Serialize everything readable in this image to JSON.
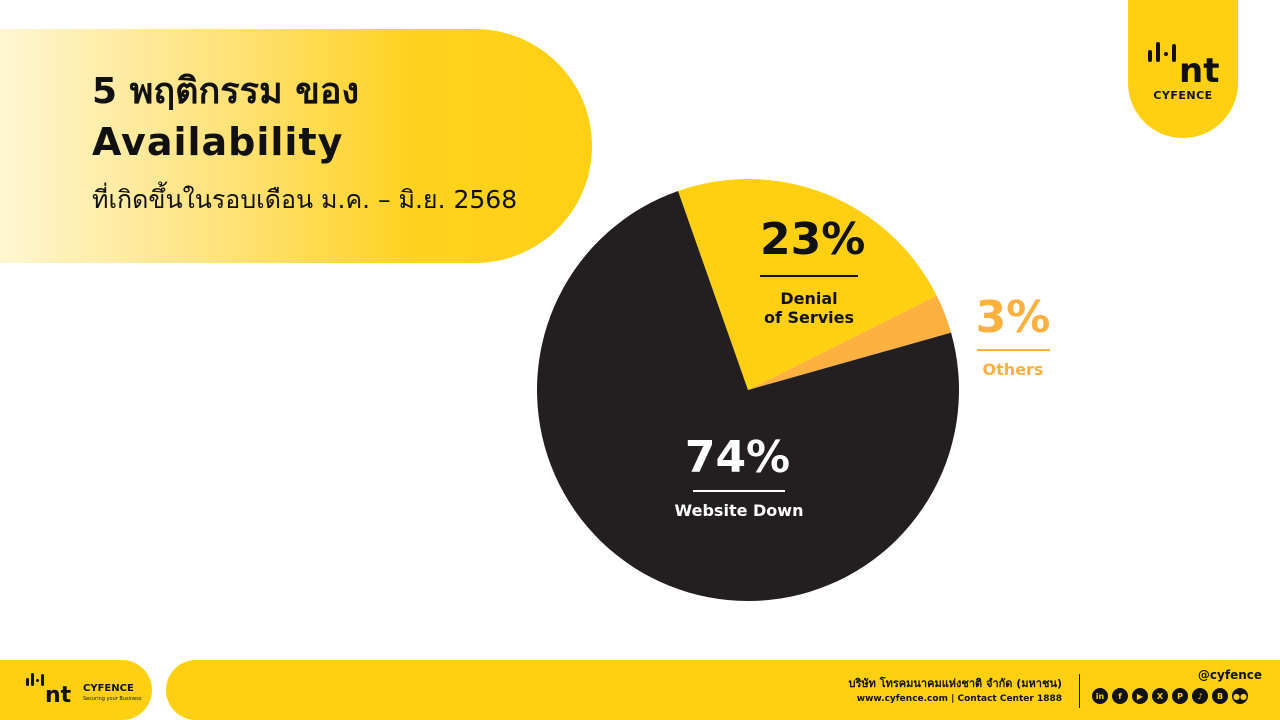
{
  "header": {
    "title_line1": "5 พฤติกรรม ของ",
    "title_line2": "Availability",
    "subtitle": "ที่เกิดขึ้นในรอบเดือน ม.ค. – มิ.ย. 2568"
  },
  "logo": {
    "text": "CYFENCE"
  },
  "chart_data": {
    "type": "pie",
    "slices": [
      {
        "label": "Denial of Servies",
        "value": 23,
        "display": "23%",
        "color": "#ffd012"
      },
      {
        "label": "Others",
        "value": 3,
        "display": "3%",
        "color": "#fbb040"
      },
      {
        "label": "Website Down",
        "value": 74,
        "display": "74%",
        "color": "#231f20"
      }
    ],
    "legend": "none"
  },
  "labels": {
    "dos": {
      "pct": "23%",
      "line1": "Denial",
      "line2": "of Servies"
    },
    "others": {
      "pct": "3%",
      "name": "Others"
    },
    "website": {
      "pct": "74%",
      "name": "Website Down"
    }
  },
  "footer": {
    "logo_text": "CYFENCE",
    "logo_sub": "Securing your Business",
    "company": "บริษัท โทรคมนาคมแห่งชาติ จำกัด (มหาชน)",
    "contact": "www.cyfence.com | Contact Center 1888",
    "handle": "@cyfence",
    "socials": [
      {
        "name": "linkedin-icon",
        "glyph": "in"
      },
      {
        "name": "facebook-icon",
        "glyph": "f"
      },
      {
        "name": "youtube-icon",
        "glyph": "▶"
      },
      {
        "name": "x-icon",
        "glyph": "X"
      },
      {
        "name": "pinterest-icon",
        "glyph": "P"
      },
      {
        "name": "tiktok-icon",
        "glyph": "♪"
      },
      {
        "name": "blockdit-icon",
        "glyph": "B"
      },
      {
        "name": "medium-icon",
        "glyph": "●●"
      }
    ]
  }
}
